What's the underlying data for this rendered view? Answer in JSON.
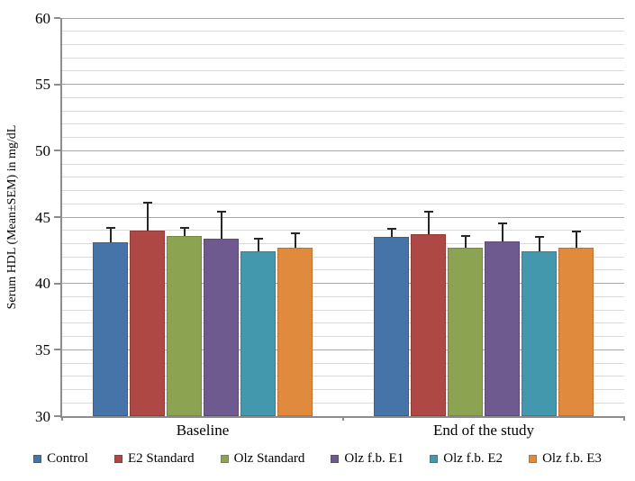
{
  "figure": {
    "background": "#ffffff",
    "axis_color": "#8c8c8c",
    "major_grid_color": "#a9a9a9",
    "minor_grid_color": "#dadada",
    "error_bar_color": "#262626",
    "text_color": "#000000"
  },
  "chart_data": {
    "type": "bar",
    "title": "",
    "xlabel": "",
    "ylabel": "Serum HDL (Mean±SEM) in mg/dL",
    "ylim": [
      30,
      60
    ],
    "ytick_step": 5,
    "minor_grid_step": 1,
    "grid": true,
    "legend_position": "bottom",
    "error_bars": "upper_sem",
    "categories": [
      "Baseline",
      "End of the study"
    ],
    "series": [
      {
        "name": "Control",
        "color": "#4673a8",
        "border": "#3a6091",
        "values": [
          43.1,
          43.5
        ],
        "sem": [
          1.1,
          0.6
        ]
      },
      {
        "name": "E2 Standard",
        "color": "#ad4845",
        "border": "#923c3a",
        "values": [
          44.0,
          43.7
        ],
        "sem": [
          2.1,
          1.7
        ]
      },
      {
        "name": "Olz Standard",
        "color": "#8ca351",
        "border": "#758943",
        "values": [
          43.6,
          42.7
        ],
        "sem": [
          0.6,
          0.9
        ]
      },
      {
        "name": "Olz f.b. E1",
        "color": "#6f5a90",
        "border": "#5c4a78",
        "values": [
          43.4,
          43.2
        ],
        "sem": [
          2.0,
          1.3
        ]
      },
      {
        "name": "Olz f.b. E2",
        "color": "#4398ae",
        "border": "#377e91",
        "values": [
          42.4,
          42.4
        ],
        "sem": [
          1.0,
          1.1
        ]
      },
      {
        "name": "Olz f.b. E3",
        "color": "#e08a3e",
        "border": "#bd7231",
        "values": [
          42.7,
          42.7
        ],
        "sem": [
          1.1,
          1.2
        ]
      }
    ]
  }
}
